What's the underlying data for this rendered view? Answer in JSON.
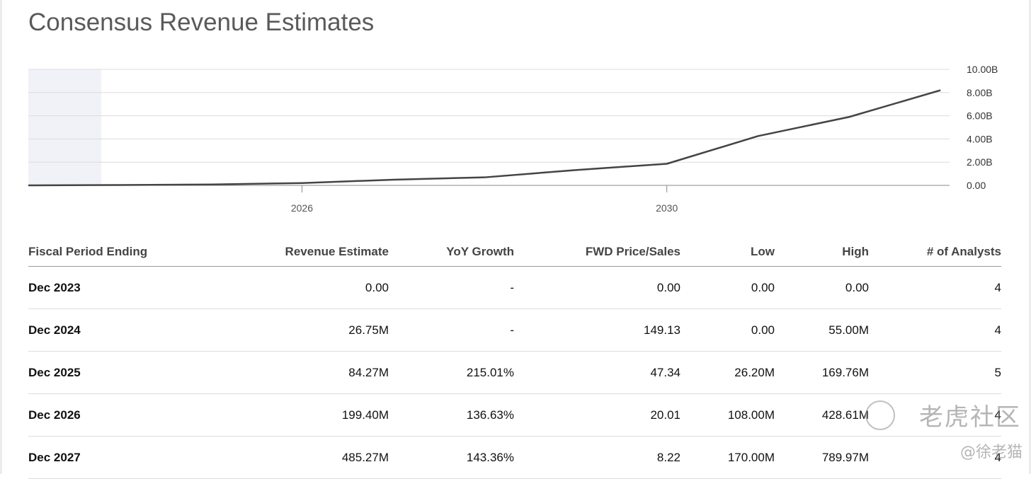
{
  "title": "Consensus Revenue Estimates",
  "chart_data": {
    "type": "line",
    "title": "",
    "x": [
      2023,
      2024,
      2025,
      2026,
      2027,
      2028,
      2029,
      2030,
      2031,
      2032,
      2033
    ],
    "series": [
      {
        "values": [
          0,
          0.03,
          0.08,
          0.2,
          0.49,
          0.69,
          1.32,
          1.86,
          4.25,
          5.9,
          8.2
        ]
      }
    ],
    "x_ticks": [
      "2026",
      "2030"
    ],
    "y_ticks": [
      "10.00B",
      "8.00B",
      "6.00B",
      "4.00B",
      "2.00B",
      "0.00"
    ],
    "ylim": [
      0,
      10
    ],
    "y_unit": "B",
    "grid": true,
    "shaded_region": [
      2023,
      2023.8
    ],
    "line_color": "#444444",
    "shade_color": "#f1f2f7"
  },
  "table": {
    "headers": [
      "Fiscal Period Ending",
      "Revenue Estimate",
      "YoY Growth",
      "FWD Price/Sales",
      "Low",
      "High",
      "# of Analysts"
    ],
    "rows": [
      [
        "Dec 2023",
        "0.00",
        "-",
        "0.00",
        "0.00",
        "0.00",
        "4"
      ],
      [
        "Dec 2024",
        "26.75M",
        "-",
        "149.13",
        "0.00",
        "55.00M",
        "4"
      ],
      [
        "Dec 2025",
        "84.27M",
        "215.01%",
        "47.34",
        "26.20M",
        "169.76M",
        "5"
      ],
      [
        "Dec 2026",
        "199.40M",
        "136.63%",
        "20.01",
        "108.00M",
        "428.61M",
        "4"
      ],
      [
        "Dec 2027",
        "485.27M",
        "143.36%",
        "8.22",
        "170.00M",
        "789.97M",
        "4"
      ]
    ]
  },
  "watermark": {
    "line1": "老虎社区",
    "line2": "@徐老猫"
  }
}
